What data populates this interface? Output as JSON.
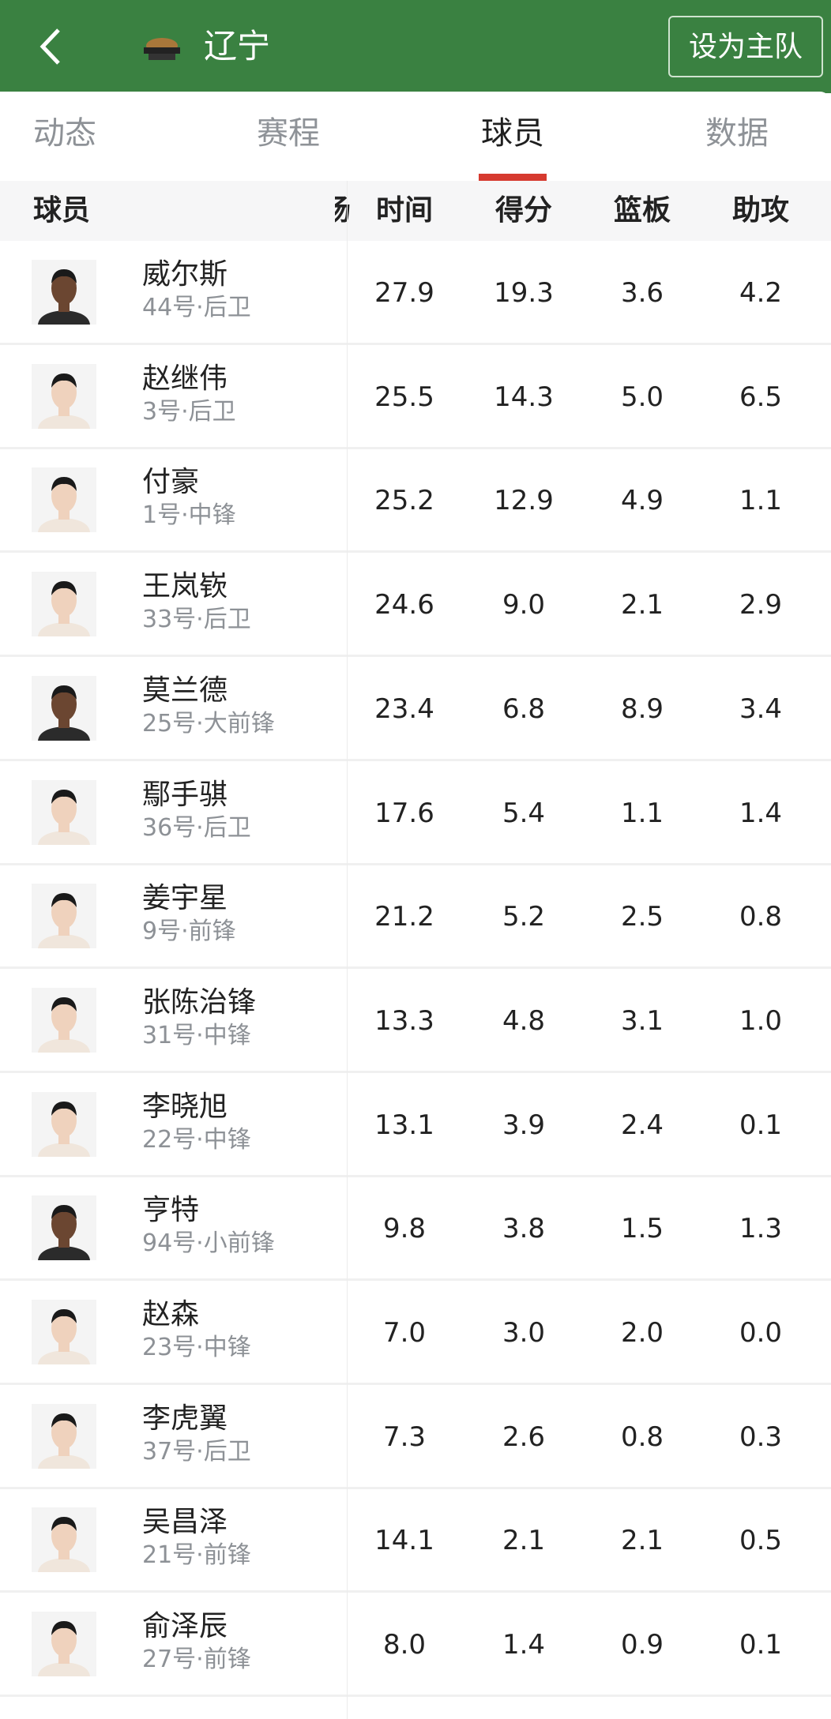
{
  "header": {
    "title": "辽宁",
    "set_home_label": "设为主队",
    "accent": "#3a8141"
  },
  "tabs": [
    {
      "label": "动态"
    },
    {
      "label": "赛程"
    },
    {
      "label": "球员",
      "active": true
    },
    {
      "label": "数据"
    }
  ],
  "table": {
    "columns": [
      "球员",
      "场",
      "时间",
      "得分",
      "篮板",
      "助攻"
    ],
    "rows": [
      {
        "name": "威尔斯",
        "info": "44号·后卫",
        "time": "27.9",
        "pts": "19.3",
        "reb": "3.6",
        "ast": "4.2",
        "skin": "dark"
      },
      {
        "name": "赵继伟",
        "info": "3号·后卫",
        "time": "25.5",
        "pts": "14.3",
        "reb": "5.0",
        "ast": "6.5",
        "skin": "light"
      },
      {
        "name": "付豪",
        "info": "1号·中锋",
        "time": "25.2",
        "pts": "12.9",
        "reb": "4.9",
        "ast": "1.1",
        "skin": "light"
      },
      {
        "name": "王岚嵚",
        "info": "33号·后卫",
        "time": "24.6",
        "pts": "9.0",
        "reb": "2.1",
        "ast": "2.9",
        "skin": "light"
      },
      {
        "name": "莫兰德",
        "info": "25号·大前锋",
        "time": "23.4",
        "pts": "6.8",
        "reb": "8.9",
        "ast": "3.4",
        "skin": "dark"
      },
      {
        "name": "鄢手骐",
        "info": "36号·后卫",
        "time": "17.6",
        "pts": "5.4",
        "reb": "1.1",
        "ast": "1.4",
        "skin": "light"
      },
      {
        "name": "姜宇星",
        "info": "9号·前锋",
        "time": "21.2",
        "pts": "5.2",
        "reb": "2.5",
        "ast": "0.8",
        "skin": "light"
      },
      {
        "name": "张陈治锋",
        "info": "31号·中锋",
        "time": "13.3",
        "pts": "4.8",
        "reb": "3.1",
        "ast": "1.0",
        "skin": "light"
      },
      {
        "name": "李晓旭",
        "info": "22号·中锋",
        "time": "13.1",
        "pts": "3.9",
        "reb": "2.4",
        "ast": "0.1",
        "skin": "light"
      },
      {
        "name": "亨特",
        "info": "94号·小前锋",
        "time": "9.8",
        "pts": "3.8",
        "reb": "1.5",
        "ast": "1.3",
        "skin": "dark"
      },
      {
        "name": "赵森",
        "info": "23号·中锋",
        "time": "7.0",
        "pts": "3.0",
        "reb": "2.0",
        "ast": "0.0",
        "skin": "light"
      },
      {
        "name": "李虎翼",
        "info": "37号·后卫",
        "time": "7.3",
        "pts": "2.6",
        "reb": "0.8",
        "ast": "0.3",
        "skin": "light"
      },
      {
        "name": "吴昌泽",
        "info": "21号·前锋",
        "time": "14.1",
        "pts": "2.1",
        "reb": "2.1",
        "ast": "0.5",
        "skin": "light"
      },
      {
        "name": "俞泽辰",
        "info": "27号·前锋",
        "time": "8.0",
        "pts": "1.4",
        "reb": "0.9",
        "ast": "0.1",
        "skin": "light"
      }
    ]
  }
}
